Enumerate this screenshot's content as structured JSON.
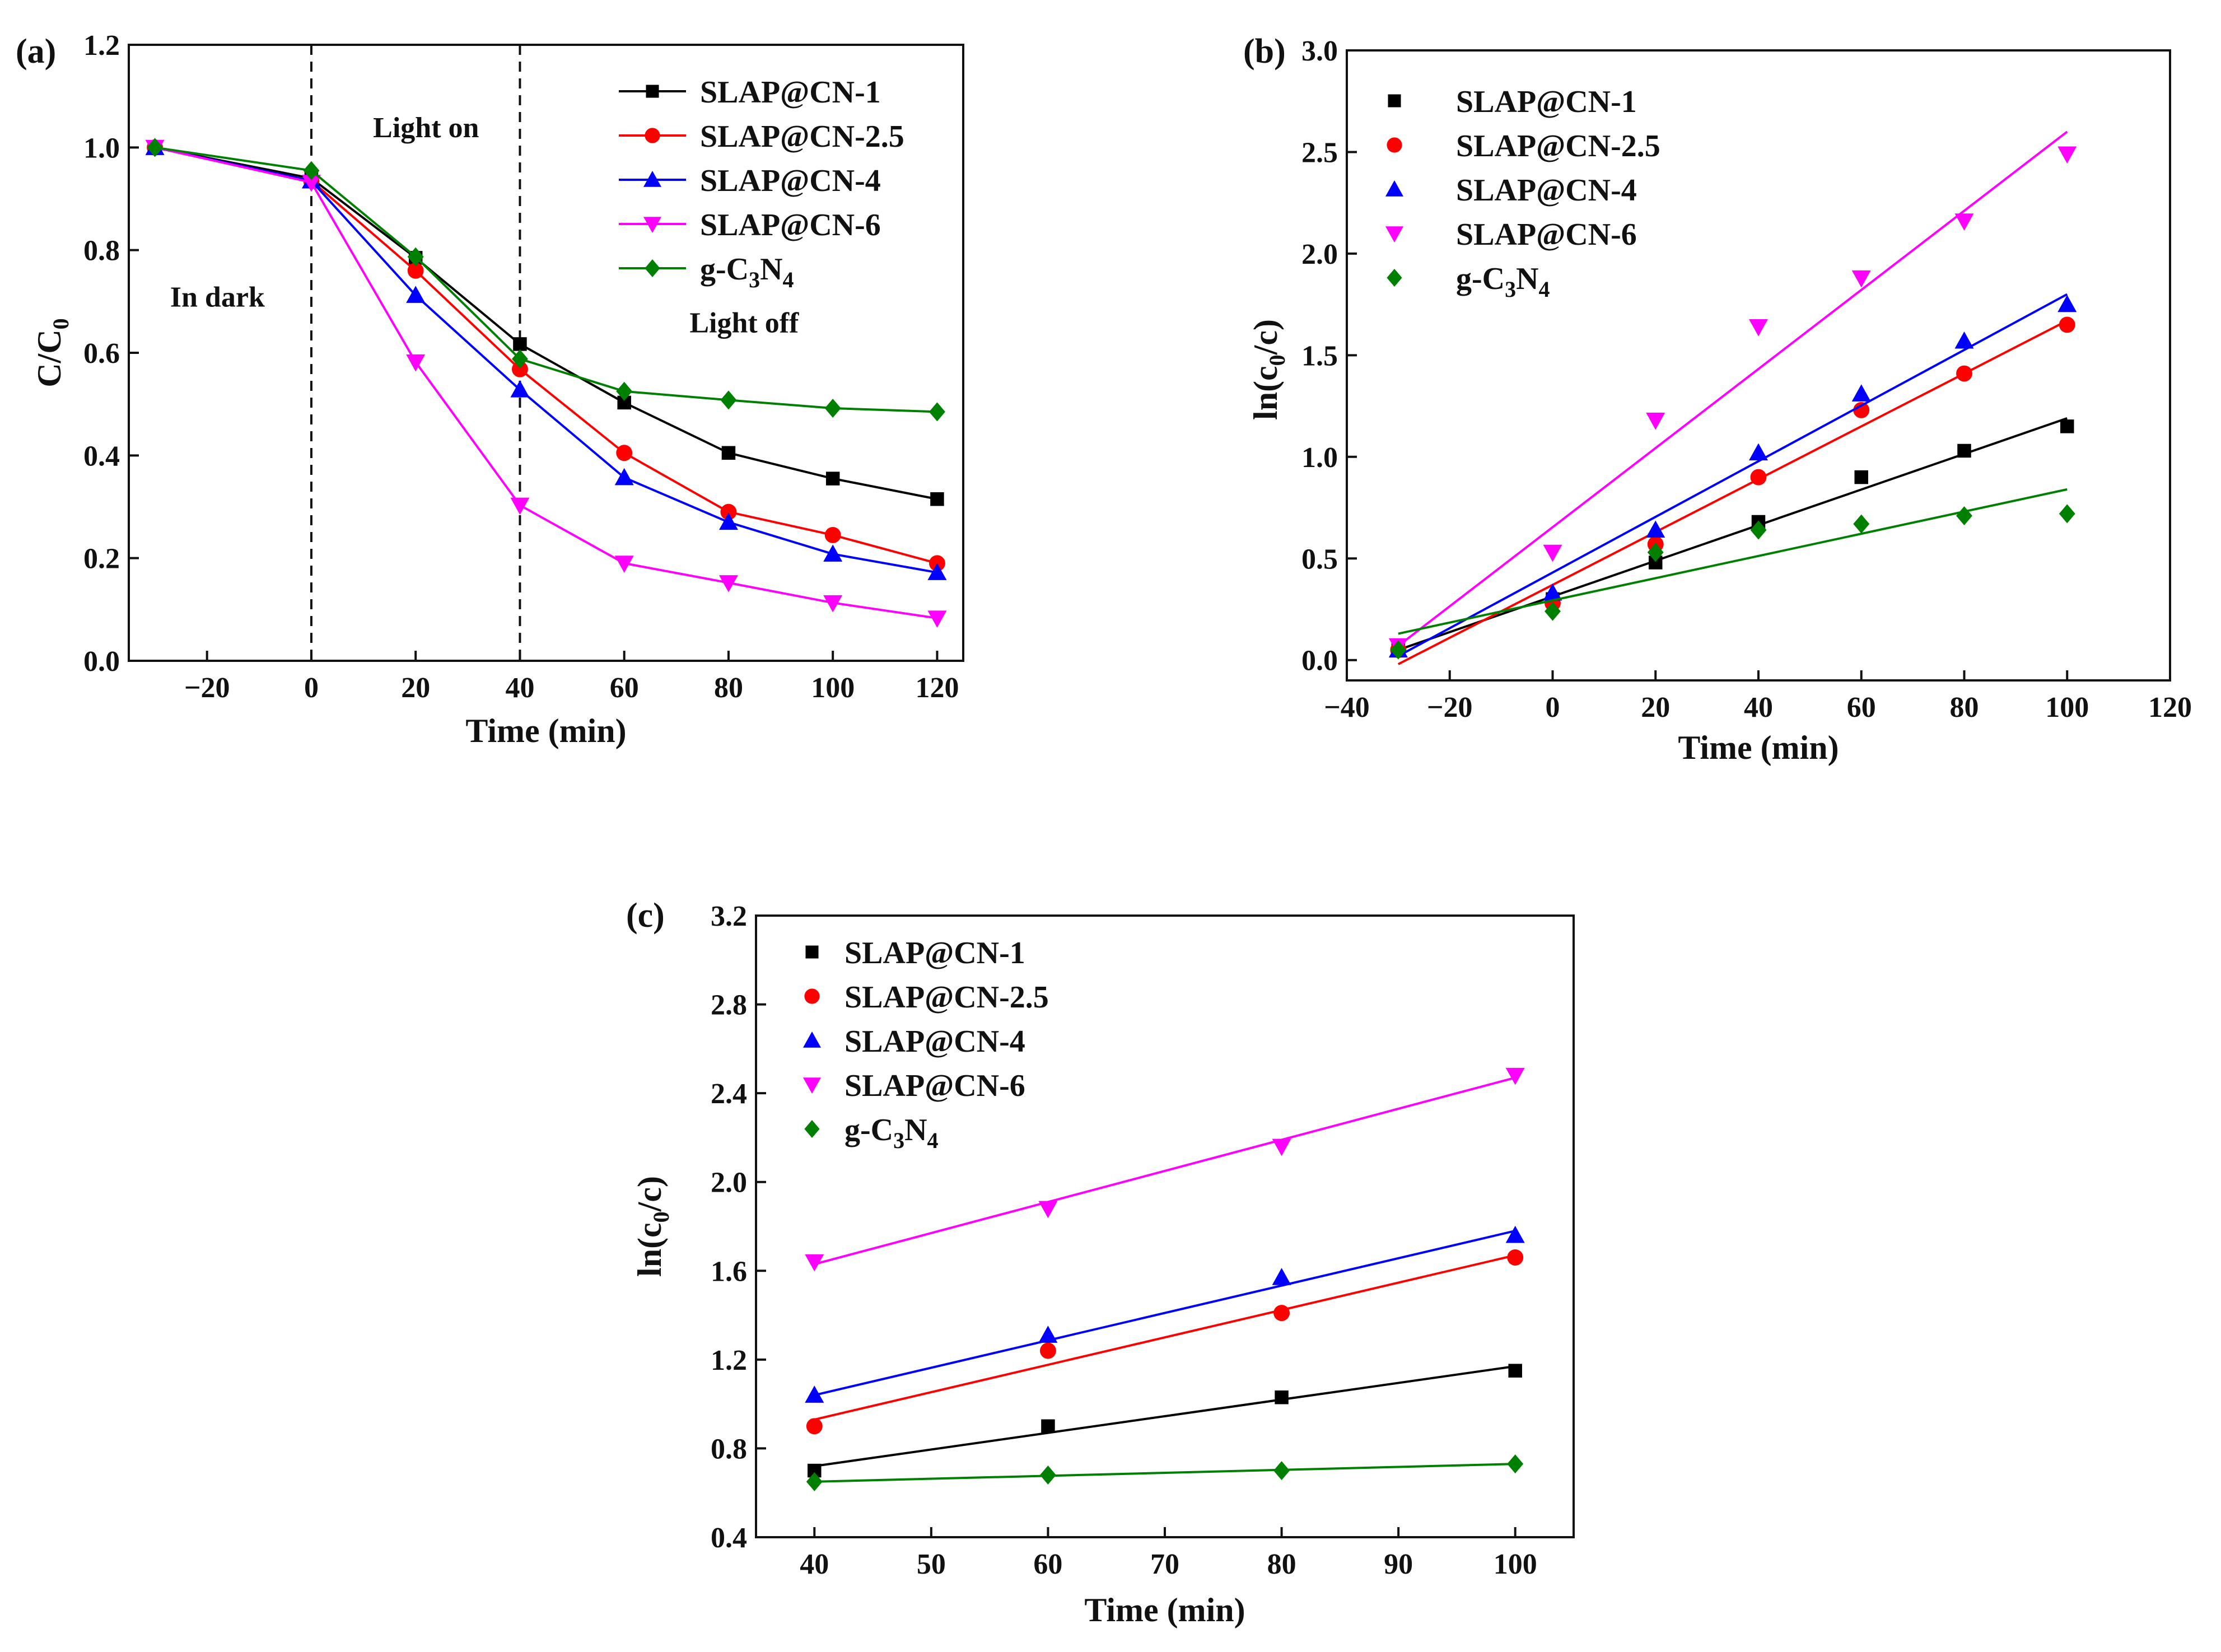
{
  "figure": {
    "chart_data": [
      {
        "id": "a",
        "type": "line",
        "panel_label": "(a)",
        "xlabel": "Time (min)",
        "ylabel": {
          "main": "C/C",
          "sub": "0"
        },
        "xlim": [
          -35,
          125
        ],
        "ylim": [
          0,
          1.2
        ],
        "xticks": [
          -20,
          0,
          20,
          40,
          60,
          80,
          100,
          120
        ],
        "xtick_labels": [
          "−20",
          "0",
          "20",
          "40",
          "60",
          "80",
          "100",
          "120"
        ],
        "yticks": [
          0,
          0.2,
          0.4,
          0.6,
          0.8,
          1.0,
          1.2
        ],
        "ytick_labels": [
          "0.0",
          "0.2",
          "0.4",
          "0.6",
          "0.8",
          "1.0",
          "1.2"
        ],
        "vlines": [
          0,
          40
        ],
        "annotations": [
          {
            "name": "in-dark-label",
            "text": "In dark",
            "x": -18,
            "y": 0.69
          },
          {
            "name": "light-on-label",
            "text": "Light on",
            "x": 22,
            "y": 1.02
          },
          {
            "name": "light-off-label",
            "text": "Light off",
            "x": 83,
            "y": 0.64
          }
        ],
        "legend_position": "top-right",
        "x": [
          -30,
          0,
          20,
          40,
          60,
          80,
          100,
          120
        ],
        "series": [
          {
            "name": "SLAP@CN-1",
            "color": "#000000",
            "marker": "square",
            "values": [
              1.0,
              0.94,
              0.785,
              0.617,
              0.503,
              0.405,
              0.355,
              0.315
            ]
          },
          {
            "name": "SLAP@CN-2.5",
            "color": "#ff0000",
            "marker": "circle",
            "values": [
              1.0,
              0.935,
              0.76,
              0.568,
              0.405,
              0.29,
              0.245,
              0.19
            ]
          },
          {
            "name": "SLAP@CN-4",
            "color": "#0000ff",
            "marker": "triangle-up",
            "values": [
              1.0,
              0.935,
              0.712,
              0.528,
              0.357,
              0.27,
              0.208,
              0.172
            ]
          },
          {
            "name": "SLAP@CN-6",
            "color": "#ff00ff",
            "marker": "triangle-down",
            "values": [
              1.0,
              0.932,
              0.582,
              0.303,
              0.19,
              0.152,
              0.113,
              0.083
            ]
          },
          {
            "name": "g-C3N4",
            "label_parts": [
              "g-C",
              "3",
              "N",
              "4"
            ],
            "color": "#008000",
            "marker": "diamond",
            "values": [
              1.0,
              0.955,
              0.787,
              0.588,
              0.525,
              0.508,
              0.492,
              0.485
            ]
          }
        ]
      },
      {
        "id": "b",
        "type": "scatter",
        "panel_label": "(b)",
        "xlabel": "Time (min)",
        "ylabel": {
          "pre": "ln(c",
          "sub": "0",
          "post": "/c)"
        },
        "xlim": [
          -40,
          120
        ],
        "ylim": [
          -0.1,
          3.0
        ],
        "xticks": [
          -40,
          -20,
          0,
          20,
          40,
          60,
          80,
          100,
          120
        ],
        "xtick_labels": [
          "−40",
          "−20",
          "0",
          "20",
          "40",
          "60",
          "80",
          "100",
          "120"
        ],
        "yticks": [
          0,
          0.5,
          1.0,
          1.5,
          2.0,
          2.5,
          3.0
        ],
        "ytick_labels": [
          "0.0",
          "0.5",
          "1.0",
          "1.5",
          "2.0",
          "2.5",
          "3.0"
        ],
        "legend_position": "top-left",
        "x": [
          -30,
          0,
          20,
          40,
          60,
          80,
          100
        ],
        "series": [
          {
            "name": "SLAP@CN-1",
            "color": "#000000",
            "marker": "square",
            "values": [
              0.05,
              0.3,
              0.48,
              0.68,
              0.9,
              1.03,
              1.15
            ],
            "fit": {
              "x": [
                -30,
                100
              ],
              "y": [
                0.05,
                1.19
              ]
            }
          },
          {
            "name": "SLAP@CN-2.5",
            "color": "#ff0000",
            "marker": "circle",
            "values": [
              0.05,
              0.28,
              0.57,
              0.9,
              1.23,
              1.41,
              1.65
            ],
            "fit": {
              "x": [
                -30,
                100
              ],
              "y": [
                -0.02,
                1.67
              ]
            }
          },
          {
            "name": "SLAP@CN-4",
            "color": "#0000ff",
            "marker": "triangle-up",
            "values": [
              0.05,
              0.33,
              0.64,
              1.02,
              1.31,
              1.57,
              1.75
            ],
            "fit": {
              "x": [
                -30,
                100
              ],
              "y": [
                0.02,
                1.8
              ]
            }
          },
          {
            "name": "SLAP@CN-6",
            "color": "#ff00ff",
            "marker": "triangle-down",
            "values": [
              0.07,
              0.53,
              1.18,
              1.64,
              1.88,
              2.16,
              2.49
            ],
            "fit": {
              "x": [
                -30,
                100
              ],
              "y": [
                0.07,
                2.6
              ]
            }
          },
          {
            "name": "g-C3N4",
            "label_parts": [
              "g-C",
              "3",
              "N",
              "4"
            ],
            "color": "#008000",
            "marker": "diamond",
            "values": [
              0.05,
              0.24,
              0.53,
              0.64,
              0.67,
              0.71,
              0.72
            ],
            "fit": {
              "x": [
                -30,
                100
              ],
              "y": [
                0.13,
                0.84
              ]
            }
          }
        ]
      },
      {
        "id": "c",
        "type": "scatter",
        "panel_label": "(c)",
        "xlabel": "Time (min)",
        "ylabel": {
          "pre": "ln(c",
          "sub": "0",
          "post": "/c)"
        },
        "xlim": [
          35,
          105
        ],
        "ylim": [
          0.4,
          3.2
        ],
        "xticks": [
          40,
          50,
          60,
          70,
          80,
          90,
          100
        ],
        "xtick_labels": [
          "40",
          "50",
          "60",
          "70",
          "80",
          "90",
          "100"
        ],
        "yticks": [
          0.4,
          0.8,
          1.2,
          1.6,
          2.0,
          2.4,
          2.8,
          3.2
        ],
        "ytick_labels": [
          "0.4",
          "0.8",
          "1.2",
          "1.6",
          "2.0",
          "2.4",
          "2.8",
          "3.2"
        ],
        "legend_position": "top-left",
        "x": [
          40,
          60,
          80,
          100
        ],
        "series": [
          {
            "name": "SLAP@CN-1",
            "color": "#000000",
            "marker": "square",
            "values": [
              0.7,
              0.9,
              1.03,
              1.15
            ],
            "fit": {
              "x": [
                40,
                100
              ],
              "y": [
                0.72,
                1.17
              ]
            }
          },
          {
            "name": "SLAP@CN-2.5",
            "color": "#ff0000",
            "marker": "circle",
            "values": [
              0.9,
              1.24,
              1.41,
              1.66
            ],
            "fit": {
              "x": [
                40,
                100
              ],
              "y": [
                0.93,
                1.67
              ]
            }
          },
          {
            "name": "SLAP@CN-4",
            "color": "#0000ff",
            "marker": "triangle-up",
            "values": [
              1.04,
              1.31,
              1.57,
              1.76
            ],
            "fit": {
              "x": [
                40,
                100
              ],
              "y": [
                1.04,
                1.78
              ]
            }
          },
          {
            "name": "SLAP@CN-6",
            "color": "#ff00ff",
            "marker": "triangle-down",
            "values": [
              1.64,
              1.88,
              2.16,
              2.48
            ],
            "fit": {
              "x": [
                40,
                100
              ],
              "y": [
                1.63,
                2.47
              ]
            }
          },
          {
            "name": "g-C3N4",
            "label_parts": [
              "g-C",
              "3",
              "N",
              "4"
            ],
            "color": "#008000",
            "marker": "diamond",
            "values": [
              0.65,
              0.68,
              0.7,
              0.73
            ],
            "fit": {
              "x": [
                40,
                100
              ],
              "y": [
                0.65,
                0.73
              ]
            }
          }
        ]
      }
    ]
  }
}
